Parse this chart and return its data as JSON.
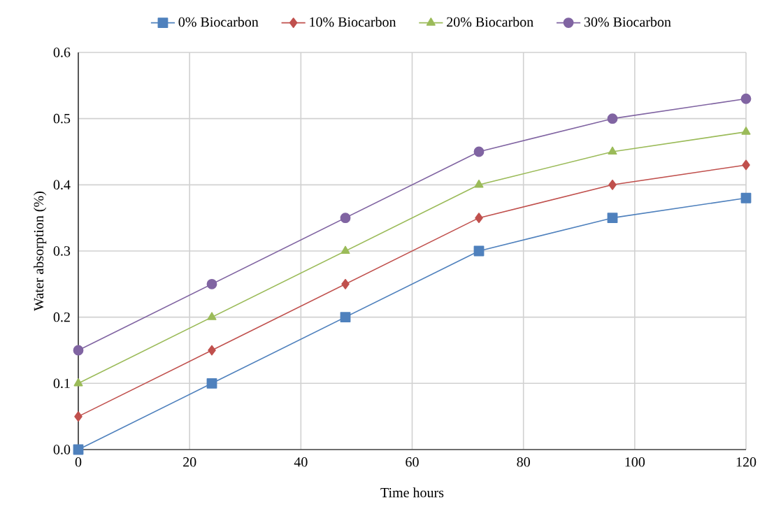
{
  "chart_data": {
    "type": "line",
    "xlabel": "Time hours",
    "ylabel": "Water absorption (%)",
    "x": [
      0,
      24,
      48,
      72,
      96,
      120
    ],
    "series": [
      {
        "name": "0% Biocarbon",
        "color": "#4f81bd",
        "marker": "square",
        "values": [
          0,
          0.1,
          0.2,
          0.3,
          0.35,
          0.38
        ]
      },
      {
        "name": "10% Biocarbon",
        "color": "#c0504d",
        "marker": "diamond",
        "values": [
          0.05,
          0.15,
          0.25,
          0.35,
          0.4,
          0.43
        ]
      },
      {
        "name": "20% Biocarbon",
        "color": "#9bbb59",
        "marker": "triangle",
        "values": [
          0.1,
          0.2,
          0.3,
          0.4,
          0.45,
          0.48
        ]
      },
      {
        "name": "30% Biocarbon",
        "color": "#8064a2",
        "marker": "circle",
        "values": [
          0.15,
          0.25,
          0.35,
          0.45,
          0.5,
          0.53
        ]
      }
    ],
    "xlim": [
      0,
      120
    ],
    "ylim": [
      0,
      0.6
    ],
    "xticks": [
      0,
      20,
      40,
      60,
      80,
      100,
      120
    ],
    "yticks": [
      {
        "value": 0,
        "label": "0.0"
      },
      0.1,
      0.2,
      0.3,
      0.4,
      0.5,
      0.6
    ],
    "grid": true,
    "legend": "top",
    "line_style": "solid"
  }
}
